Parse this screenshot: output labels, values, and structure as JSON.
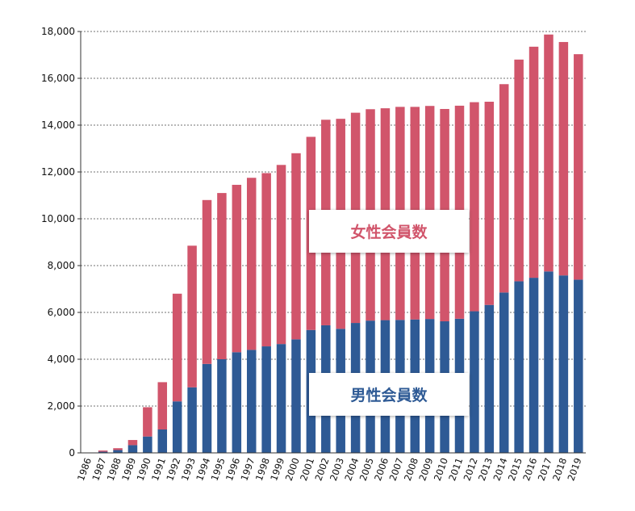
{
  "colors": {
    "female": "#d1556b",
    "male": "#2e5a95",
    "axis": "#333333",
    "grid": "#444444"
  },
  "chart_data": {
    "type": "bar",
    "stacked": true,
    "grid": true,
    "ylim": [
      0,
      18000
    ],
    "yticks": [
      0,
      2000,
      4000,
      6000,
      8000,
      10000,
      12000,
      14000,
      16000,
      18000
    ],
    "ytick_labels": [
      "0",
      "2,000",
      "4,000",
      "6,000",
      "8,000",
      "10,000",
      "12,000",
      "14,000",
      "16,000",
      "18,000"
    ],
    "categories": [
      "1986",
      "1987",
      "1988",
      "1989",
      "1990",
      "1991",
      "1992",
      "1993",
      "1994",
      "1995",
      "1996",
      "1997",
      "1998",
      "1999",
      "2000",
      "2001",
      "2002",
      "2003",
      "2004",
      "2005",
      "2006",
      "2007",
      "2008",
      "2009",
      "2010",
      "2011",
      "2012",
      "2013",
      "2014",
      "2015",
      "2016",
      "2017",
      "2018",
      "2019"
    ],
    "series": [
      {
        "name": "男性会員数",
        "values": [
          0,
          50,
          120,
          330,
          700,
          1000,
          2200,
          2800,
          3800,
          4000,
          4300,
          4400,
          4550,
          4650,
          4850,
          5250,
          5450,
          5300,
          5550,
          5650,
          5670,
          5680,
          5700,
          5720,
          5620,
          5730,
          6050,
          6320,
          6850,
          7330,
          7480,
          7750,
          7580,
          7400
        ]
      },
      {
        "name": "女性会員数",
        "values": [
          0,
          50,
          80,
          220,
          1250,
          2020,
          4600,
          6050,
          7000,
          7100,
          7150,
          7350,
          7400,
          7650,
          7950,
          8250,
          8780,
          8970,
          8980,
          9030,
          9050,
          9100,
          9080,
          9100,
          9070,
          9100,
          8930,
          8680,
          8900,
          9470,
          9870,
          10120,
          9970,
          9630
        ]
      }
    ]
  }
}
